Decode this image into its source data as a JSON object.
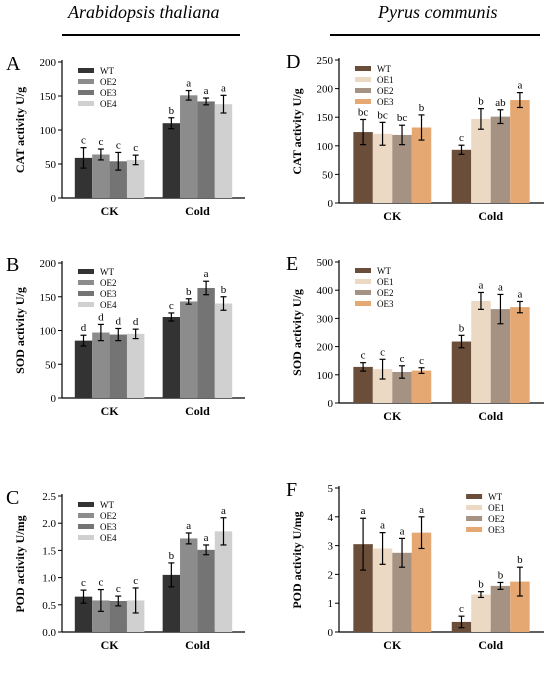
{
  "headers": {
    "left": "Arabidopsis thaliana",
    "right": "Pyrus communis"
  },
  "colors": {
    "arabidopsis": [
      "#333333",
      "#8c8c8c",
      "#747474",
      "#d0d0d0"
    ],
    "pyrus": [
      "#6a4e3a",
      "#ecd9c3",
      "#a59282",
      "#e6a872"
    ]
  },
  "chart_data": [
    {
      "panel": "A",
      "type": "bar",
      "ylabel": "CAT activity U/g",
      "categories": [
        "CK",
        "Cold"
      ],
      "ylim": [
        0,
        200
      ],
      "yticks": [
        0,
        50,
        100,
        150,
        200
      ],
      "legend": "top-left",
      "series": [
        {
          "name": "WT",
          "values": [
            59,
            110
          ],
          "errors": [
            15,
            8
          ],
          "letters": [
            "c",
            "b"
          ]
        },
        {
          "name": "OE2",
          "values": [
            64,
            151
          ],
          "errors": [
            8,
            7
          ],
          "letters": [
            "c",
            "a"
          ]
        },
        {
          "name": "OE3",
          "values": [
            54,
            142
          ],
          "errors": [
            13,
            5
          ],
          "letters": [
            "c",
            "a"
          ]
        },
        {
          "name": "OE4",
          "values": [
            56,
            138
          ],
          "errors": [
            7,
            13
          ],
          "letters": [
            "c",
            "a"
          ]
        }
      ]
    },
    {
      "panel": "B",
      "type": "bar",
      "ylabel": "SOD activity U/g",
      "categories": [
        "CK",
        "Cold"
      ],
      "ylim": [
        0,
        200
      ],
      "yticks": [
        0,
        50,
        100,
        150,
        200
      ],
      "legend": "top-left",
      "series": [
        {
          "name": "WT",
          "values": [
            85,
            120
          ],
          "errors": [
            8,
            6
          ],
          "letters": [
            "d",
            "c"
          ]
        },
        {
          "name": "OE2",
          "values": [
            97,
            143
          ],
          "errors": [
            12,
            4
          ],
          "letters": [
            "d",
            "b"
          ]
        },
        {
          "name": "OE3",
          "values": [
            94,
            163
          ],
          "errors": [
            9,
            10
          ],
          "letters": [
            "d",
            "a"
          ]
        },
        {
          "name": "OE4",
          "values": [
            95,
            140
          ],
          "errors": [
            7,
            10
          ],
          "letters": [
            "d",
            "b"
          ]
        }
      ]
    },
    {
      "panel": "C",
      "type": "bar",
      "ylabel": "POD activity U/mg",
      "categories": [
        "CK",
        "Cold"
      ],
      "ylim": [
        0,
        2.5
      ],
      "yticks": [
        0.0,
        0.5,
        1.0,
        1.5,
        2.0,
        2.5
      ],
      "tick_decimals": 1,
      "legend": "top-left",
      "series": [
        {
          "name": "WT",
          "values": [
            0.65,
            1.05
          ],
          "errors": [
            0.12,
            0.22
          ],
          "letters": [
            "c",
            "b"
          ]
        },
        {
          "name": "OE2",
          "values": [
            0.58,
            1.72
          ],
          "errors": [
            0.2,
            0.1
          ],
          "letters": [
            "c",
            "a"
          ]
        },
        {
          "name": "OE3",
          "values": [
            0.57,
            1.51
          ],
          "errors": [
            0.09,
            0.09
          ],
          "letters": [
            "c",
            "a"
          ]
        },
        {
          "name": "OE4",
          "values": [
            0.58,
            1.85
          ],
          "errors": [
            0.23,
            0.25
          ],
          "letters": [
            "c",
            "a"
          ]
        }
      ]
    },
    {
      "panel": "D",
      "type": "bar",
      "ylabel": "CAT activity U/g",
      "categories": [
        "CK",
        "Cold"
      ],
      "ylim": [
        0,
        250
      ],
      "yticks": [
        0,
        50,
        100,
        150,
        200,
        250
      ],
      "legend": "top-left",
      "series": [
        {
          "name": "WT",
          "values": [
            124,
            93
          ],
          "errors": [
            22,
            8
          ],
          "letters": [
            "bc",
            "c"
          ]
        },
        {
          "name": "OE1",
          "values": [
            121,
            147
          ],
          "errors": [
            20,
            18
          ],
          "letters": [
            "bc",
            "b"
          ]
        },
        {
          "name": "OE2",
          "values": [
            119,
            151
          ],
          "errors": [
            17,
            12
          ],
          "letters": [
            "bc",
            "ab"
          ]
        },
        {
          "name": "OE3",
          "values": [
            132,
            180
          ],
          "errors": [
            22,
            13
          ],
          "letters": [
            "b",
            "a"
          ]
        }
      ]
    },
    {
      "panel": "E",
      "type": "bar",
      "ylabel": "SOD activity U/g",
      "categories": [
        "CK",
        "Cold"
      ],
      "ylim": [
        0,
        500
      ],
      "yticks": [
        0,
        100,
        200,
        300,
        400,
        500
      ],
      "legend": "top-left",
      "series": [
        {
          "name": "WT",
          "values": [
            128,
            218
          ],
          "errors": [
            15,
            22
          ],
          "letters": [
            "c",
            "b"
          ]
        },
        {
          "name": "OE1",
          "values": [
            120,
            362
          ],
          "errors": [
            35,
            30
          ],
          "letters": [
            "c",
            "a"
          ]
        },
        {
          "name": "OE2",
          "values": [
            110,
            333
          ],
          "errors": [
            22,
            52
          ],
          "letters": [
            "c",
            "a"
          ]
        },
        {
          "name": "OE3",
          "values": [
            115,
            340
          ],
          "errors": [
            10,
            20
          ],
          "letters": [
            "c",
            "a"
          ]
        }
      ]
    },
    {
      "panel": "F",
      "type": "bar",
      "ylabel": "POD activity U/mg",
      "categories": [
        "CK",
        "Cold"
      ],
      "ylim": [
        0,
        5
      ],
      "yticks": [
        0,
        1,
        2,
        3,
        4,
        5
      ],
      "legend": "top-right",
      "series": [
        {
          "name": "WT",
          "values": [
            3.05,
            0.35
          ],
          "errors": [
            0.9,
            0.2
          ],
          "letters": [
            "a",
            "c"
          ]
        },
        {
          "name": "OE1",
          "values": [
            2.9,
            1.3
          ],
          "errors": [
            0.55,
            0.1
          ],
          "letters": [
            "a",
            "b"
          ]
        },
        {
          "name": "OE2",
          "values": [
            2.75,
            1.6
          ],
          "errors": [
            0.5,
            0.12
          ],
          "letters": [
            "a",
            "b"
          ]
        },
        {
          "name": "OE3",
          "values": [
            3.45,
            1.75
          ],
          "errors": [
            0.55,
            0.5
          ],
          "letters": [
            "a",
            "b"
          ]
        }
      ]
    }
  ]
}
